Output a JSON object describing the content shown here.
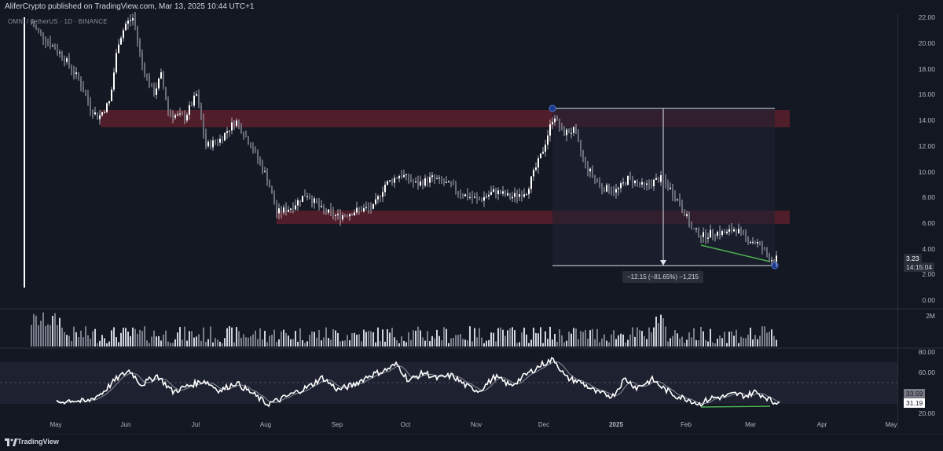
{
  "header": {
    "published_by": "AliferCrypto published on TradingView.com, Mar 13, 2025 10:44 UTC+1"
  },
  "chart": {
    "symbol_line": "OMNI / TetherUS · 1D · BINANCE",
    "type": "candlestick",
    "price_axis_ticks": [
      "22.00",
      "20.00",
      "18.00",
      "16.00",
      "14.00",
      "12.00",
      "10.00",
      "8.00",
      "6.00",
      "4.00",
      "2.00",
      "0.00"
    ],
    "volume_axis_label": "2M",
    "rsi_axis_ticks": [
      "80.00",
      "60.00",
      "20.00"
    ],
    "time_axis_labels": [
      "May",
      "Jun",
      "Jul",
      "Aug",
      "Sep",
      "Oct",
      "Nov",
      "Dec",
      "2025",
      "Feb",
      "Mar",
      "Apr",
      "May"
    ],
    "last_price": "3.23",
    "countdown": "14:15:04",
    "rsi_ma_value": "33.59",
    "rsi_value": "31.19",
    "measure_text": "−12.15 (−81.65%) −1,215",
    "resistance_zone_color": "#5a1f2b",
    "support_zone_color": "#5a1f2b",
    "divergence_line_color": "#4caf50",
    "rsi_band": [
      30,
      70
    ]
  },
  "footer": {
    "brand": "TradingView",
    "logo_icon": "tradingview-logo-icon"
  }
}
